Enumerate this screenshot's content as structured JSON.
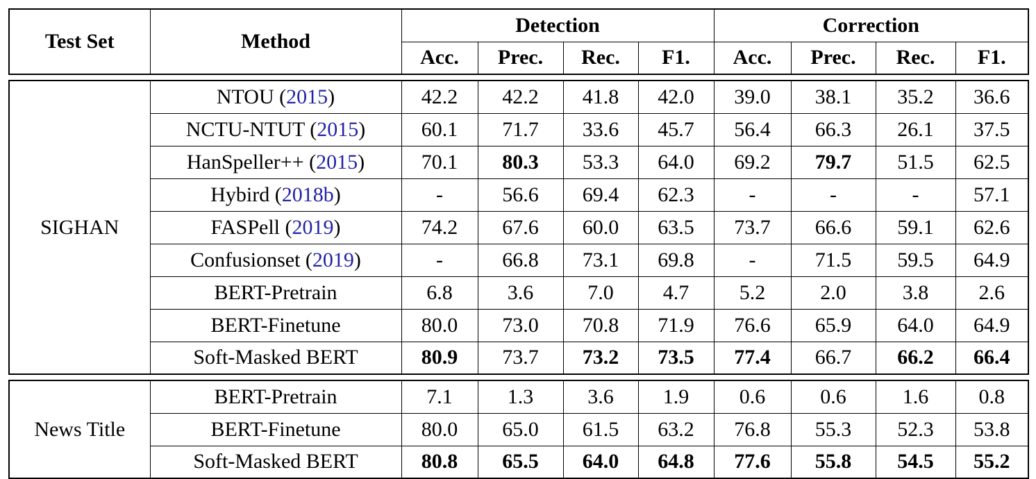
{
  "header": {
    "test_set": "Test Set",
    "method": "Method",
    "groups": {
      "detection": "Detection",
      "correction": "Correction"
    },
    "subcols": [
      "Acc.",
      "Prec.",
      "Rec.",
      "F1."
    ]
  },
  "colors": {
    "citation_blue": "#2222aa",
    "border": "#000000",
    "background": "#ffffff"
  },
  "sections": [
    {
      "test_set": "SIGHAN",
      "rows": [
        {
          "method_pre": "NTOU (",
          "cite": "2015",
          "method_post": ")",
          "values": [
            "42.2",
            "42.2",
            "41.8",
            "42.0",
            "39.0",
            "38.1",
            "35.2",
            "36.6"
          ],
          "bold": [
            false,
            false,
            false,
            false,
            false,
            false,
            false,
            false
          ]
        },
        {
          "method_pre": "NCTU-NTUT (",
          "cite": "2015",
          "method_post": ")",
          "values": [
            "60.1",
            "71.7",
            "33.6",
            "45.7",
            "56.4",
            "66.3",
            "26.1",
            "37.5"
          ],
          "bold": [
            false,
            false,
            false,
            false,
            false,
            false,
            false,
            false
          ]
        },
        {
          "method_pre": "HanSpeller++ (",
          "cite": "2015",
          "method_post": ")",
          "values": [
            "70.1",
            "80.3",
            "53.3",
            "64.0",
            "69.2",
            "79.7",
            "51.5",
            "62.5"
          ],
          "bold": [
            false,
            true,
            false,
            false,
            false,
            true,
            false,
            false
          ]
        },
        {
          "method_pre": "Hybird (",
          "cite": "2018b",
          "method_post": ")",
          "values": [
            "-",
            "56.6",
            "69.4",
            "62.3",
            "-",
            "-",
            "-",
            "57.1"
          ],
          "bold": [
            false,
            false,
            false,
            false,
            false,
            false,
            false,
            false
          ]
        },
        {
          "method_pre": "FASPell (",
          "cite": "2019",
          "method_post": ")",
          "values": [
            "74.2",
            "67.6",
            "60.0",
            "63.5",
            "73.7",
            "66.6",
            "59.1",
            "62.6"
          ],
          "bold": [
            false,
            false,
            false,
            false,
            false,
            false,
            false,
            false
          ]
        },
        {
          "method_pre": "Confusionset (",
          "cite": "2019",
          "method_post": ")",
          "values": [
            "-",
            "66.8",
            "73.1",
            "69.8",
            "-",
            "71.5",
            "59.5",
            "64.9"
          ],
          "bold": [
            false,
            false,
            false,
            false,
            false,
            false,
            false,
            false
          ]
        },
        {
          "method_pre": "BERT-Pretrain",
          "cite": "",
          "method_post": "",
          "values": [
            "6.8",
            "3.6",
            "7.0",
            "4.7",
            "5.2",
            "2.0",
            "3.8",
            "2.6"
          ],
          "bold": [
            false,
            false,
            false,
            false,
            false,
            false,
            false,
            false
          ]
        },
        {
          "method_pre": "BERT-Finetune",
          "cite": "",
          "method_post": "",
          "values": [
            "80.0",
            "73.0",
            "70.8",
            "71.9",
            "76.6",
            "65.9",
            "64.0",
            "64.9"
          ],
          "bold": [
            false,
            false,
            false,
            false,
            false,
            false,
            false,
            false
          ]
        },
        {
          "method_pre": "Soft-Masked BERT",
          "cite": "",
          "method_post": "",
          "values": [
            "80.9",
            "73.7",
            "73.2",
            "73.5",
            "77.4",
            "66.7",
            "66.2",
            "66.4"
          ],
          "bold": [
            true,
            false,
            true,
            true,
            true,
            false,
            true,
            true
          ]
        }
      ]
    },
    {
      "test_set": "News Title",
      "rows": [
        {
          "method_pre": "BERT-Pretrain",
          "cite": "",
          "method_post": "",
          "values": [
            "7.1",
            "1.3",
            "3.6",
            "1.9",
            "0.6",
            "0.6",
            "1.6",
            "0.8"
          ],
          "bold": [
            false,
            false,
            false,
            false,
            false,
            false,
            false,
            false
          ]
        },
        {
          "method_pre": "BERT-Finetune",
          "cite": "",
          "method_post": "",
          "values": [
            "80.0",
            "65.0",
            "61.5",
            "63.2",
            "76.8",
            "55.3",
            "52.3",
            "53.8"
          ],
          "bold": [
            false,
            false,
            false,
            false,
            false,
            false,
            false,
            false
          ]
        },
        {
          "method_pre": "Soft-Masked BERT",
          "cite": "",
          "method_post": "",
          "values": [
            "80.8",
            "65.5",
            "64.0",
            "64.8",
            "77.6",
            "55.8",
            "54.5",
            "55.2"
          ],
          "bold": [
            true,
            true,
            true,
            true,
            true,
            true,
            true,
            true
          ]
        }
      ]
    }
  ]
}
